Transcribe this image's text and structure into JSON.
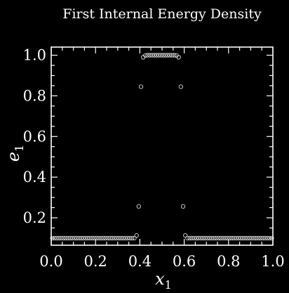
{
  "chart_data": {
    "type": "scatter",
    "title": "First Internal Energy Density",
    "xlabel": "x",
    "xlabel_sub": "1",
    "ylabel": "e",
    "ylabel_sub": "1",
    "xlim": [
      0.0,
      1.0
    ],
    "ylim": [
      0.065,
      1.04
    ],
    "x_ticks": [
      0.0,
      0.2,
      0.4,
      0.6,
      0.8,
      1.0
    ],
    "x_tick_labels": [
      "0.0",
      "0.2",
      "0.4",
      "0.6",
      "0.8",
      "1.0"
    ],
    "y_ticks": [
      0.2,
      0.4,
      0.6,
      0.8,
      1.0
    ],
    "y_tick_labels": [
      "0.2",
      "0.4",
      "0.6",
      "0.8",
      "1.0"
    ],
    "grid": false,
    "background_color": "#000000",
    "foreground_color": "#ffffff",
    "marker": "open-circle",
    "marker_color": "#d8d8d8",
    "x": [
      0.005,
      0.015,
      0.025,
      0.035,
      0.045,
      0.055,
      0.065,
      0.075,
      0.085,
      0.095,
      0.105,
      0.115,
      0.125,
      0.135,
      0.145,
      0.155,
      0.165,
      0.175,
      0.185,
      0.195,
      0.205,
      0.215,
      0.225,
      0.235,
      0.245,
      0.255,
      0.265,
      0.275,
      0.285,
      0.295,
      0.305,
      0.315,
      0.325,
      0.335,
      0.345,
      0.355,
      0.365,
      0.375,
      0.385,
      0.395,
      0.405,
      0.415,
      0.425,
      0.435,
      0.445,
      0.455,
      0.465,
      0.475,
      0.485,
      0.495,
      0.505,
      0.515,
      0.525,
      0.535,
      0.545,
      0.555,
      0.565,
      0.575,
      0.585,
      0.595,
      0.605,
      0.615,
      0.625,
      0.635,
      0.645,
      0.655,
      0.665,
      0.675,
      0.685,
      0.695,
      0.705,
      0.715,
      0.725,
      0.735,
      0.745,
      0.755,
      0.765,
      0.775,
      0.785,
      0.795,
      0.805,
      0.815,
      0.825,
      0.835,
      0.845,
      0.855,
      0.865,
      0.875,
      0.885,
      0.895,
      0.905,
      0.915,
      0.925,
      0.935,
      0.945,
      0.955,
      0.965,
      0.975,
      0.985,
      0.995
    ],
    "y": [
      0.1,
      0.1,
      0.1,
      0.1,
      0.1,
      0.1,
      0.1,
      0.1,
      0.1,
      0.1,
      0.1,
      0.1,
      0.1,
      0.1,
      0.1,
      0.1,
      0.1,
      0.1,
      0.1,
      0.1,
      0.1,
      0.1,
      0.1,
      0.1,
      0.1,
      0.1,
      0.1,
      0.1,
      0.1,
      0.1,
      0.1,
      0.1,
      0.1,
      0.1,
      0.1,
      0.1,
      0.1,
      0.1,
      0.113,
      0.256,
      0.845,
      0.99,
      0.999,
      1.0,
      1.0,
      1.0,
      1.0,
      1.0,
      1.0,
      1.0,
      1.0,
      1.0,
      1.0,
      1.0,
      1.0,
      1.0,
      0.999,
      0.99,
      0.845,
      0.256,
      0.113,
      0.1,
      0.1,
      0.1,
      0.1,
      0.1,
      0.1,
      0.1,
      0.1,
      0.1,
      0.1,
      0.1,
      0.1,
      0.1,
      0.1,
      0.1,
      0.1,
      0.1,
      0.1,
      0.1,
      0.1,
      0.1,
      0.1,
      0.1,
      0.1,
      0.1,
      0.1,
      0.1,
      0.1,
      0.1,
      0.1,
      0.1,
      0.1,
      0.1,
      0.1,
      0.1,
      0.1,
      0.1,
      0.1,
      0.1
    ]
  }
}
